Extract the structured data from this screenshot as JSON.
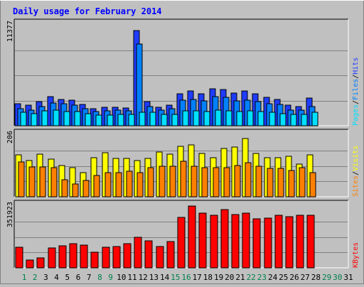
{
  "chart_data": {
    "type": "bar",
    "title": "Daily usage for February 2014",
    "days": [
      "1",
      "2",
      "3",
      "4",
      "5",
      "6",
      "7",
      "8",
      "9",
      "10",
      "11",
      "12",
      "13",
      "14",
      "15",
      "16",
      "17",
      "18",
      "19",
      "20",
      "21",
      "22",
      "23",
      "24",
      "25",
      "26",
      "27",
      "28",
      "29",
      "30",
      "31"
    ],
    "weekend_days": [
      "1",
      "2",
      "8",
      "9",
      "15",
      "16",
      "22",
      "23",
      "29",
      "30"
    ],
    "panels": {
      "hits_files_pages": {
        "ymax_label": "11377",
        "ymax": 11377,
        "series": [
          {
            "name": "Hits",
            "values": [
              2500,
              2300,
              2700,
              3300,
              3000,
              2900,
              2400,
              1900,
              2100,
              2100,
              2000,
              10700,
              2700,
              2100,
              2300,
              3600,
              3900,
              3600,
              4200,
              4100,
              3700,
              3900,
              3600,
              3200,
              3000,
              2300,
              2200,
              3100,
              0,
              0,
              0
            ]
          },
          {
            "name": "Files",
            "values": [
              1900,
              1800,
              2200,
              2600,
              2500,
              2300,
              1900,
              1600,
              1700,
              1800,
              1700,
              9200,
              2200,
              1800,
              1900,
              2900,
              3000,
              2800,
              3300,
              3200,
              2800,
              2900,
              2700,
              2500,
              2400,
              1800,
              1800,
              2200,
              0,
              0,
              0
            ]
          },
          {
            "name": "Pages",
            "values": [
              1500,
              1400,
              1700,
              1800,
              1600,
              1600,
              1400,
              1200,
              1200,
              1300,
              1300,
              1500,
              1500,
              1300,
              1300,
              1700,
              1700,
              1600,
              1800,
              1700,
              1600,
              1700,
              1600,
              1500,
              1400,
              1300,
              1300,
              1500,
              0,
              0,
              0
            ]
          }
        ],
        "legend": [
          "Pages",
          "/",
          "Files",
          "/",
          "Hits"
        ]
      },
      "visits_sites": {
        "ymax_label": "206",
        "ymax": 206,
        "series": [
          {
            "name": "Visits",
            "values": [
              140,
              120,
              142,
              125,
              103,
              98,
              80,
              130,
              146,
              127,
              127,
              120,
              128,
              148,
              142,
              167,
              173,
              145,
              130,
              160,
              165,
              193,
              144,
              130,
              130,
              134,
              110,
              140,
              0,
              0,
              0
            ]
          },
          {
            "name": "Sites",
            "values": [
              115,
              100,
              100,
              96,
              58,
              42,
              55,
              70,
              80,
              80,
              85,
              80,
              98,
              102,
              102,
              118,
              102,
              98,
              96,
              98,
              104,
              113,
              102,
              94,
              94,
              88,
              96,
              80,
              0,
              0,
              0
            ]
          }
        ],
        "legend": [
          "Sites",
          "/",
          "Visits"
        ]
      },
      "kbytes": {
        "ymax_label": "351923",
        "ymax": 351923,
        "series": [
          {
            "name": "KBytes",
            "values": [
              117000,
              46000,
              56000,
              115000,
              125000,
              138000,
              130000,
              88000,
              116000,
              123000,
              136000,
              175000,
              153000,
              120000,
              151000,
              289000,
              351923,
              310000,
              298000,
              330000,
              305000,
              310000,
              280000,
              282000,
              298000,
              292000,
              300000,
              301000,
              0,
              0,
              0
            ]
          }
        ],
        "legend": [
          "KBytes"
        ]
      }
    },
    "colors": {
      "background": "#c0c0c0",
      "panel": "#c0c0c0",
      "title": "#0000ff",
      "hits": "#1e3cff",
      "files": "#0080ff",
      "pages": "#00e0ff",
      "visits": "#ffff00",
      "sites": "#ff8000",
      "kbytes": "#ff0000",
      "weekday_label": "#000000",
      "weekend_label": "#00804b"
    }
  }
}
